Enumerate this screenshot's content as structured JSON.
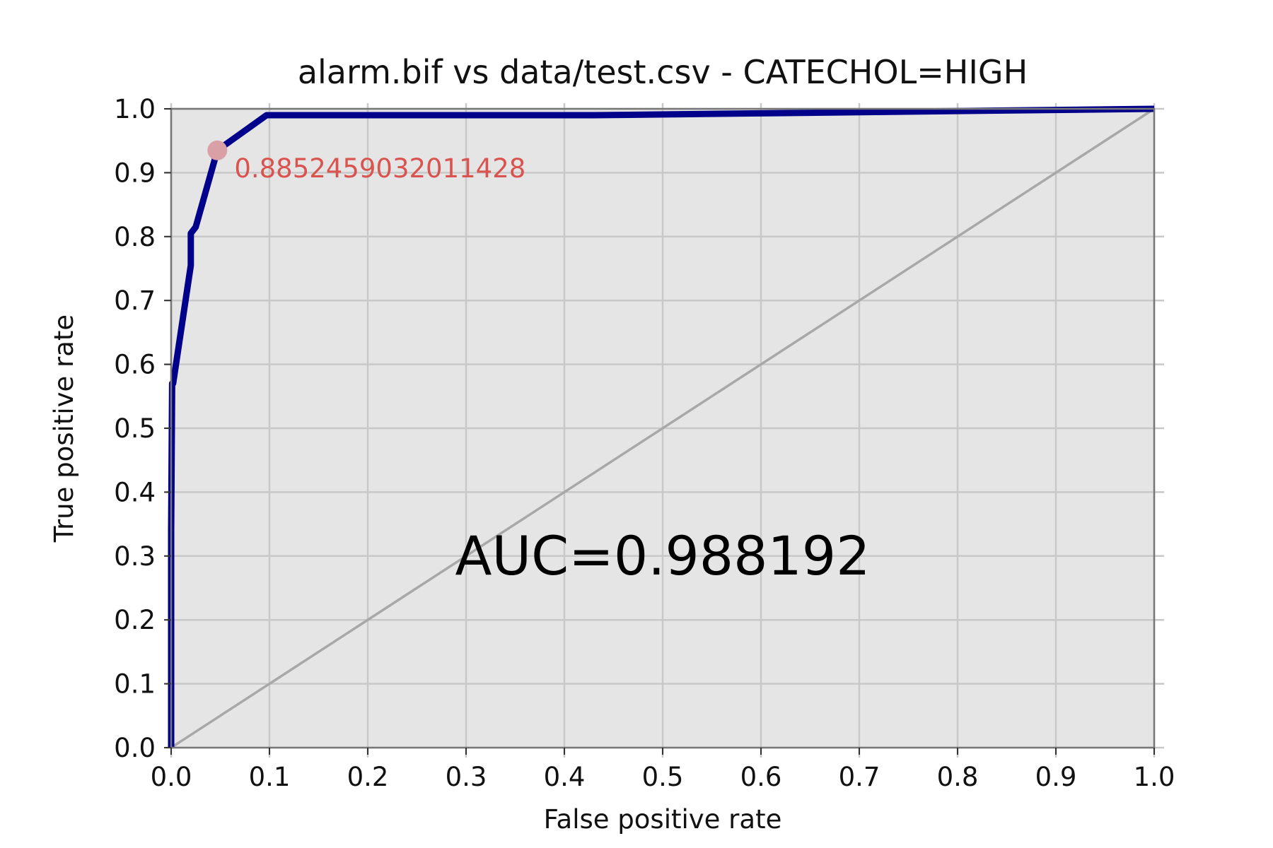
{
  "chart_data": {
    "type": "line",
    "title": "alarm.bif vs data/test.csv - CATECHOL=HIGH",
    "xlabel": "False positive rate",
    "ylabel": "True positive rate",
    "xlim": [
      0.0,
      1.0
    ],
    "ylim": [
      0.0,
      1.0
    ],
    "x_ticks": [
      "0.0",
      "0.1",
      "0.2",
      "0.3",
      "0.4",
      "0.5",
      "0.6",
      "0.7",
      "0.8",
      "0.9",
      "1.0"
    ],
    "y_ticks": [
      "0.0",
      "0.1",
      "0.2",
      "0.3",
      "0.4",
      "0.5",
      "0.6",
      "0.7",
      "0.8",
      "0.9",
      "1.0"
    ],
    "grid": true,
    "series": [
      {
        "color": "#00008b",
        "x": [
          0.0,
          0.0,
          0.001,
          0.002,
          0.02,
          0.02,
          0.025,
          0.047,
          0.097,
          0.43,
          1.0
        ],
        "y": [
          0.0,
          0.34,
          0.57,
          0.57,
          0.755,
          0.805,
          0.815,
          0.935,
          0.99,
          0.99,
          1.0
        ]
      }
    ],
    "diagonal": {
      "x": [
        0.0,
        1.0
      ],
      "y": [
        0.0,
        1.0
      ],
      "color": "#a8a8a8"
    },
    "highlight_point": {
      "x": 0.047,
      "y": 0.935,
      "label": "0.8852459032011428",
      "color": "#d9a0a6",
      "label_color": "#d9534f"
    },
    "annotation": {
      "text": "AUC=0.988192",
      "x": 0.5,
      "y": 0.3
    },
    "plot_background": "#e5e5e5"
  }
}
